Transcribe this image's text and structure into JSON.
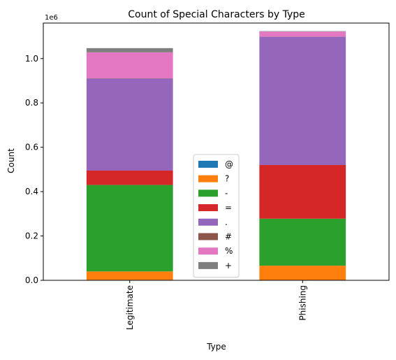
{
  "chart_data": {
    "type": "bar",
    "stacked": true,
    "title": "Count of Special Characters by Type",
    "xlabel": "Type",
    "ylabel": "Count",
    "y_offset_text": "1e6",
    "categories": [
      "Legitimate",
      "Phishing"
    ],
    "ylim": [
      0,
      1.16
    ],
    "y_ticks": [
      "0.0",
      "0.2",
      "0.4",
      "0.6",
      "0.8",
      "1.0"
    ],
    "grid": false,
    "legend_position": "center-bottom",
    "series": [
      {
        "name": "@",
        "color": "#1f77b4",
        "values": [
          0.002,
          0.001
        ]
      },
      {
        "name": "?",
        "color": "#ff7f0e",
        "values": [
          0.038,
          0.065
        ]
      },
      {
        "name": "-",
        "color": "#2ca02c",
        "values": [
          0.39,
          0.212
        ]
      },
      {
        "name": "=",
        "color": "#d62728",
        "values": [
          0.065,
          0.242
        ]
      },
      {
        "name": ".",
        "color": "#9467bd",
        "values": [
          0.415,
          0.578
        ]
      },
      {
        "name": "#",
        "color": "#8c564b",
        "values": [
          0.001,
          0.0005
        ]
      },
      {
        "name": "%",
        "color": "#e377c2",
        "values": [
          0.117,
          0.023
        ]
      },
      {
        "name": "+",
        "color": "#7f7f7f",
        "values": [
          0.019,
          0.002
        ]
      }
    ]
  }
}
